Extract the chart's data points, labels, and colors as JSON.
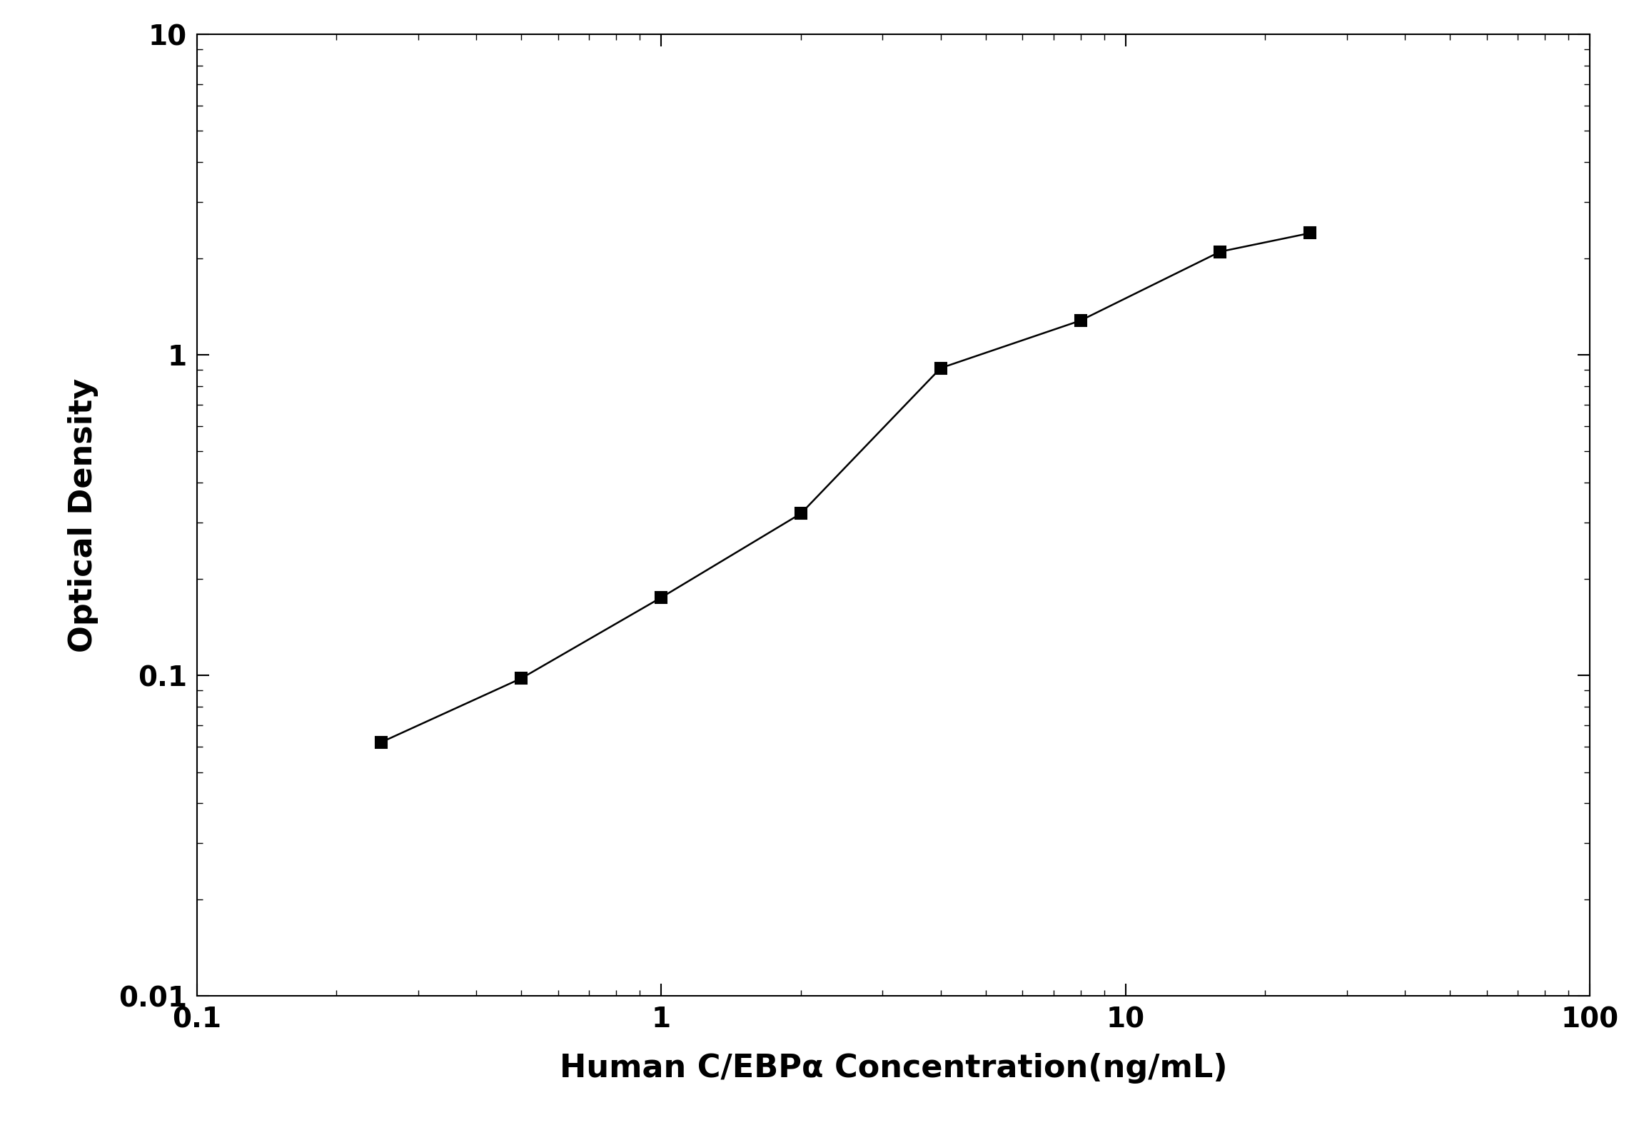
{
  "x_data": [
    0.25,
    0.5,
    1.0,
    2.0,
    4.0,
    8.0,
    16.0,
    25.0
  ],
  "y_data": [
    0.062,
    0.098,
    0.175,
    0.32,
    0.91,
    1.28,
    2.1,
    2.4
  ],
  "xlim": [
    0.1,
    100
  ],
  "ylim": [
    0.01,
    10
  ],
  "xlabel": "Human C/EBPα Concentration(ng/mL)",
  "ylabel": "Optical Density",
  "line_color": "#000000",
  "marker": "s",
  "marker_color": "#000000",
  "marker_size": 12,
  "line_width": 1.8,
  "background_color": "#ffffff",
  "tick_label_fontsize": 28,
  "axis_label_fontsize": 32,
  "figure_width": 22.96,
  "figure_height": 16.04
}
